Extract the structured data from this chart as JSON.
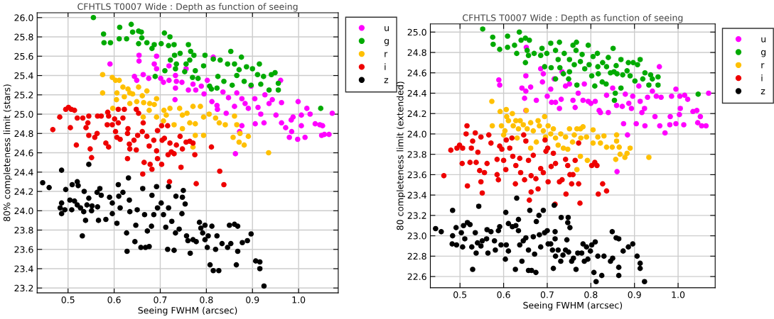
{
  "chart_data": [
    {
      "type": "scatter",
      "title": "CFHTLS T0007 Wide : Depth as function of seeing",
      "xlabel": "Seeing FWHM (arcsec)",
      "ylabel": "80% completeness limit (stars)",
      "xlim": [
        0.433,
        1.086
      ],
      "ylim": [
        23.15,
        26.05
      ],
      "xticks": [
        0.5,
        0.6,
        0.7,
        0.8,
        0.9,
        {
          "value": 1,
          "label": "1.0"
        }
      ],
      "yticks": [
        23.2,
        23.4,
        23.6,
        23.8,
        {
          "value": 24,
          "label": "24.0"
        },
        24.2,
        24.4,
        24.6,
        24.8,
        {
          "value": 25,
          "label": "25.0"
        },
        25.2,
        25.4,
        25.6,
        25.8,
        {
          "value": 26,
          "label": "26.0"
        }
      ],
      "grid": true,
      "legend": "top right",
      "marker": "circle",
      "series": [
        {
          "name": "u",
          "color": "#ff00ff",
          "x": [
            0.591,
            0.654,
            0.654,
            0.644,
            0.663,
            0.649,
            0.675,
            0.692,
            0.687,
            0.692,
            0.701,
            0.707,
            0.719,
            0.719,
            0.733,
            0.735,
            0.733,
            0.747,
            0.756,
            0.761,
            0.771,
            0.777,
            0.732,
            0.789,
            0.795,
            0.802,
            0.815,
            0.812,
            0.823,
            0.824,
            0.843,
            0.836,
            0.848,
            0.861,
            0.866,
            0.877,
            0.877,
            0.872,
            0.863,
            0.884,
            0.891,
            0.897,
            0.905,
            0.906,
            0.912,
            0.918,
            0.925,
            0.927,
            0.936,
            0.943,
            0.951,
            0.961,
            0.963,
            0.963,
            0.972,
            0.98,
            0.984,
            0.988,
            0.985,
            0.999,
            0.998,
            1.006,
            1.006,
            1.014,
            1.018,
            1.025,
            1.036,
            1.046,
            1.052,
            1.05,
            1.056,
            1.066,
            1.073
          ],
          "values": [
            25.52,
            25.61,
            25.55,
            25.39,
            25.41,
            25.35,
            25.37,
            25.6,
            25.52,
            25.47,
            25.37,
            25.33,
            25.35,
            25.5,
            25.4,
            25.34,
            25.27,
            25.33,
            25.47,
            25.25,
            25.31,
            25.25,
            25.15,
            25.29,
            25.21,
            25.35,
            25.59,
            25.13,
            25.09,
            25.05,
            25.01,
            25.23,
            25.17,
            25.08,
            25.22,
            25.16,
            24.88,
            24.82,
            24.59,
            25.11,
            25.06,
            25.29,
            25.16,
            24.9,
            25.07,
            25.0,
            24.91,
            25.2,
            25.11,
            25.15,
            24.99,
            25.35,
            24.91,
            25.12,
            24.86,
            24.76,
            24.94,
            24.97,
            24.82,
            25.13,
            24.74,
            24.99,
            24.88,
            24.76,
            25.06,
            25.0,
            24.9,
            24.89,
            24.88,
            24.78,
            24.79,
            24.79,
            25.01
          ]
        },
        {
          "name": "g",
          "color": "#00aa00",
          "x": [
            0.555,
            0.577,
            0.578,
            0.592,
            0.612,
            0.611,
            0.637,
            0.64,
            0.627,
            0.653,
            0.659,
            0.66,
            0.653,
            0.671,
            0.687,
            0.682,
            0.702,
            0.709,
            0.721,
            0.718,
            0.73,
            0.731,
            0.743,
            0.761,
            0.766,
            0.773,
            0.764,
            0.756,
            0.735,
            0.722,
            0.71,
            0.689,
            0.733,
            0.753,
            0.77,
            0.782,
            0.776,
            0.794,
            0.797,
            0.815,
            0.83,
            0.846,
            0.853,
            0.861,
            0.876,
            0.871,
            0.887,
            0.9,
            0.915,
            0.911,
            0.924,
            0.941,
            0.949,
            0.956,
            0.956,
            0.936,
            0.918,
            0.897,
            0.882,
            0.856,
            0.838,
            0.825,
            0.811,
            0.807,
            0.823,
            0.866,
            1.048
          ],
          "values": [
            26.0,
            25.83,
            25.74,
            25.74,
            25.9,
            25.78,
            25.93,
            25.85,
            25.78,
            25.86,
            25.85,
            25.79,
            25.73,
            25.74,
            25.72,
            25.68,
            25.73,
            25.84,
            25.8,
            25.71,
            25.72,
            25.61,
            25.63,
            25.72,
            25.65,
            25.61,
            25.56,
            25.52,
            25.52,
            25.56,
            25.45,
            25.39,
            25.47,
            25.44,
            25.38,
            25.37,
            25.45,
            25.5,
            25.61,
            25.57,
            25.56,
            25.52,
            25.65,
            25.52,
            25.59,
            25.46,
            25.49,
            25.47,
            25.52,
            25.41,
            25.39,
            25.41,
            25.43,
            25.32,
            25.25,
            25.25,
            25.31,
            25.3,
            25.34,
            25.3,
            25.34,
            25.39,
            25.26,
            25.29,
            25.27,
            25.4,
            25.06
          ]
        },
        {
          "name": "r",
          "color": "#ffc000",
          "x": [
            0.575,
            0.575,
            0.596,
            0.603,
            0.611,
            0.619,
            0.606,
            0.605,
            0.63,
            0.622,
            0.634,
            0.64,
            0.653,
            0.671,
            0.661,
            0.649,
            0.664,
            0.677,
            0.692,
            0.687,
            0.663,
            0.676,
            0.692,
            0.708,
            0.721,
            0.713,
            0.707,
            0.73,
            0.742,
            0.748,
            0.748,
            0.758,
            0.764,
            0.771,
            0.776,
            0.787,
            0.794,
            0.806,
            0.82,
            0.828,
            0.841,
            0.861,
            0.866,
            0.858,
            0.873,
            0.871,
            0.882,
            0.891,
            0.935,
            0.776,
            0.794,
            0.771,
            0.597,
            0.634
          ],
          "values": [
            25.41,
            25.22,
            25.38,
            25.35,
            25.35,
            25.28,
            25.22,
            25.15,
            25.26,
            25.18,
            25.11,
            25.21,
            25.28,
            25.24,
            25.19,
            25.13,
            25.12,
            25.11,
            25.16,
            25.1,
            24.97,
            25.04,
            24.97,
            25.04,
            25.06,
            24.99,
            24.93,
            24.89,
            25.06,
            24.85,
            24.99,
            25.01,
            24.91,
            25.08,
            24.9,
            25.08,
            24.97,
            25.0,
            24.96,
            24.91,
            24.89,
            24.98,
            24.89,
            24.76,
            24.8,
            24.71,
            24.68,
            24.77,
            24.6,
            24.78,
            24.78,
            24.66,
            25.06,
            25.22
          ]
        },
        {
          "name": "i",
          "color": "#ee0000",
          "x": [
            0.467,
            0.482,
            0.495,
            0.501,
            0.507,
            0.514,
            0.505,
            0.518,
            0.52,
            0.532,
            0.539,
            0.545,
            0.543,
            0.545,
            0.548,
            0.551,
            0.558,
            0.563,
            0.564,
            0.572,
            0.586,
            0.588,
            0.582,
            0.588,
            0.585,
            0.596,
            0.601,
            0.603,
            0.609,
            0.606,
            0.613,
            0.619,
            0.622,
            0.629,
            0.629,
            0.633,
            0.634,
            0.643,
            0.648,
            0.648,
            0.653,
            0.651,
            0.661,
            0.663,
            0.662,
            0.665,
            0.671,
            0.676,
            0.678,
            0.682,
            0.686,
            0.692,
            0.694,
            0.694,
            0.703,
            0.704,
            0.703,
            0.709,
            0.716,
            0.717,
            0.721,
            0.73,
            0.735,
            0.743,
            0.745,
            0.72,
            0.748,
            0.756,
            0.764,
            0.771,
            0.775,
            0.778,
            0.811,
            0.829,
            0.838,
            0.609,
            0.724,
            0.63
          ],
          "values": [
            24.84,
            24.97,
            25.05,
            25.07,
            25.05,
            25.04,
            24.86,
            24.68,
            24.96,
            24.96,
            24.86,
            24.98,
            24.91,
            24.78,
            24.64,
            24.55,
            24.76,
            24.8,
            24.98,
            24.98,
            25.02,
            24.98,
            24.7,
            24.66,
            24.89,
            24.89,
            24.95,
            24.82,
            25.05,
            24.76,
            24.74,
            24.96,
            25.05,
            24.8,
            24.54,
            24.69,
            24.64,
            24.73,
            24.63,
            25.05,
            25.01,
            24.78,
            24.82,
            24.91,
            24.38,
            24.5,
            24.77,
            24.67,
            24.48,
            24.43,
            24.73,
            24.62,
            24.83,
            24.54,
            24.88,
            24.73,
            24.48,
            24.75,
            24.88,
            24.58,
            24.7,
            24.59,
            24.68,
            24.77,
            24.45,
            24.3,
            24.64,
            24.71,
            24.72,
            24.7,
            24.58,
            24.28,
            24.66,
            24.41,
            24.27,
            24.91,
            24.61,
            24.85
          ]
        },
        {
          "name": "z",
          "color": "#000000",
          "x": [
            0.445,
            0.459,
            0.486,
            0.483,
            0.486,
            0.486,
            0.493,
            0.495,
            0.504,
            0.508,
            0.509,
            0.514,
            0.52,
            0.522,
            0.52,
            0.527,
            0.531,
            0.534,
            0.535,
            0.538,
            0.541,
            0.545,
            0.545,
            0.552,
            0.551,
            0.564,
            0.563,
            0.569,
            0.566,
            0.572,
            0.582,
            0.59,
            0.596,
            0.596,
            0.606,
            0.609,
            0.61,
            0.613,
            0.619,
            0.627,
            0.628,
            0.631,
            0.633,
            0.634,
            0.645,
            0.647,
            0.65,
            0.658,
            0.662,
            0.666,
            0.668,
            0.672,
            0.676,
            0.682,
            0.681,
            0.686,
            0.692,
            0.694,
            0.702,
            0.707,
            0.712,
            0.716,
            0.718,
            0.718,
            0.725,
            0.73,
            0.733,
            0.734,
            0.741,
            0.747,
            0.748,
            0.75,
            0.754,
            0.757,
            0.76,
            0.765,
            0.771,
            0.778,
            0.785,
            0.788,
            0.792,
            0.797,
            0.797,
            0.804,
            0.802,
            0.808,
            0.812,
            0.815,
            0.82,
            0.823,
            0.827,
            0.834,
            0.846,
            0.85,
            0.853,
            0.861,
            0.865,
            0.868,
            0.868,
            0.878,
            0.889,
            0.897,
            0.907,
            0.916,
            0.916,
            0.925
          ],
          "values": [
            24.29,
            24.24,
            24.42,
            24.03,
            24.08,
            23.97,
            24.01,
            24.22,
            24.11,
            24.01,
            24.27,
            24.1,
            24.3,
            24.26,
            24.06,
            24.03,
            23.74,
            23.99,
            24.2,
            23.9,
            24.06,
            24.48,
            24.13,
            24.05,
            24.0,
            24.04,
            24.19,
            24.23,
            23.9,
            24.16,
            23.91,
            24.14,
            24.08,
            23.97,
            23.87,
            24.27,
            24.15,
            24.03,
            24.19,
            23.77,
            23.58,
            24.34,
            24.11,
            23.99,
            23.68,
            23.85,
            24.01,
            23.62,
            24.23,
            23.96,
            23.62,
            23.79,
            23.63,
            24.16,
            23.84,
            23.96,
            24.25,
            24.03,
            24.08,
            23.96,
            23.83,
            23.6,
            24.03,
            24.25,
            23.89,
            23.59,
            23.77,
            24.15,
            23.81,
            23.97,
            24.14,
            24.21,
            24.07,
            23.74,
            23.69,
            23.56,
            23.7,
            23.68,
            23.88,
            23.82,
            23.77,
            23.85,
            23.7,
            23.74,
            23.62,
            23.44,
            23.84,
            23.38,
            23.6,
            23.74,
            23.38,
            23.66,
            23.62,
            23.85,
            23.66,
            23.86,
            23.44,
            23.84,
            23.58,
            23.67,
            23.69,
            23.76,
            23.48,
            23.47,
            23.4,
            23.22
          ]
        }
      ]
    },
    {
      "type": "scatter",
      "title": "CFHTLS T0007 Wide : Depth as function of seeing",
      "xlabel": "Seeing FWHM (arcsec)",
      "ylabel": "80 completeness limit (extended)",
      "xlim": [
        0.432,
        1.085
      ],
      "ylim": [
        22.49,
        25.08
      ],
      "xticks": [
        0.5,
        0.6,
        0.7,
        0.8,
        0.9,
        {
          "value": 1,
          "label": "1.0"
        }
      ],
      "yticks": [
        22.6,
        22.8,
        {
          "value": 23,
          "label": "23.0"
        },
        23.2,
        23.4,
        23.6,
        23.8,
        {
          "value": 24,
          "label": "24.0"
        },
        24.2,
        24.4,
        24.6,
        24.8,
        {
          "value": 25,
          "label": "25.0"
        }
      ],
      "grid": true,
      "legend": "top right",
      "marker": "circle",
      "series": [
        {
          "name": "u",
          "color": "#ff00ff",
          "x": [
            0.652,
            0.651,
            0.589,
            0.591,
            0.642,
            0.648,
            0.651,
            0.662,
            0.651,
            0.675,
            0.685,
            0.691,
            0.689,
            0.7,
            0.708,
            0.71,
            0.719,
            0.716,
            0.728,
            0.732,
            0.734,
            0.742,
            0.751,
            0.759,
            0.764,
            0.771,
            0.782,
            0.785,
            0.794,
            0.8,
            0.81,
            0.819,
            0.822,
            0.836,
            0.84,
            0.85,
            0.859,
            0.86,
            0.875,
            0.872,
            0.879,
            0.884,
            0.887,
            0.893,
            0.896,
            0.904,
            0.91,
            0.913,
            0.917,
            0.924,
            0.923,
            0.93,
            0.941,
            0.947,
            0.95,
            0.958,
            0.961,
            0.957,
            0.97,
            0.981,
            0.982,
            0.985,
            0.995,
            0.995,
            1.004,
            1.003,
            1.005,
            1.013,
            1.015,
            1.022,
            1.034,
            1.043,
            1.051,
            1.045,
            1.054,
            1.064,
            1.07
          ],
          "values": [
            24.85,
            24.57,
            24.53,
            24.48,
            24.45,
            24.35,
            24.42,
            24.46,
            24.23,
            24.33,
            24.64,
            24.59,
            24.51,
            24.37,
            24.44,
            24.31,
            24.31,
            24.54,
            24.25,
            24.34,
            24.61,
            24.47,
            24.49,
            24.33,
            24.26,
            24.4,
            24.33,
            24.49,
            24.32,
            24.3,
            24.32,
            24.23,
            24.21,
            24.38,
            24.21,
            24.45,
            24.28,
            23.63,
            24.1,
            24.27,
            24.39,
            23.99,
            24.3,
            24.25,
            24.37,
            24.1,
            24.47,
            24.32,
            24.21,
            24.08,
            24.25,
            24.36,
            24.42,
            24.17,
            24.37,
            24.08,
            24.36,
            24.66,
            24.01,
            24.09,
            24.17,
            24.37,
            24.1,
            24.44,
            24.37,
            24.19,
            24.25,
            24.09,
            24.38,
            24.34,
            24.22,
            24.23,
            24.17,
            24.11,
            24.08,
            24.08,
            24.4
          ]
        },
        {
          "name": "g",
          "color": "#00aa00",
          "x": [
            0.552,
            0.575,
            0.576,
            0.591,
            0.609,
            0.609,
            0.63,
            0.625,
            0.636,
            0.64,
            0.65,
            0.659,
            0.654,
            0.65,
            0.657,
            0.67,
            0.688,
            0.685,
            0.699,
            0.694,
            0.708,
            0.719,
            0.728,
            0.725,
            0.709,
            0.719,
            0.729,
            0.739,
            0.751,
            0.759,
            0.767,
            0.766,
            0.762,
            0.751,
            0.737,
            0.749,
            0.768,
            0.776,
            0.78,
            0.786,
            0.794,
            0.796,
            0.805,
            0.802,
            0.809,
            0.815,
            0.816,
            0.817,
            0.827,
            0.826,
            0.835,
            0.836,
            0.84,
            0.845,
            0.851,
            0.853,
            0.858,
            0.86,
            0.856,
            0.854,
            0.869,
            0.873,
            0.869,
            0.883,
            0.886,
            0.89,
            0.897,
            0.901,
            0.907,
            0.913,
            0.919,
            0.924,
            0.933,
            0.937,
            0.941,
            0.954,
            0.954,
            1.046
          ],
          "values": [
            25.03,
            24.95,
            24.88,
            24.83,
            24.96,
            24.85,
            24.79,
            24.87,
            25.0,
            24.92,
            24.94,
            24.92,
            24.82,
            24.7,
            24.77,
            24.79,
            24.84,
            24.77,
            24.79,
            24.66,
            24.89,
            24.82,
            24.9,
            24.73,
            24.65,
            24.54,
            24.65,
            24.79,
            24.73,
            24.87,
            24.9,
            24.82,
            24.68,
            24.61,
            24.59,
            24.54,
            24.48,
            24.71,
            24.78,
            24.64,
            24.87,
            24.68,
            24.76,
            24.57,
            24.47,
            24.79,
            24.66,
            24.59,
            24.7,
            24.51,
            24.49,
            24.66,
            24.75,
            24.6,
            24.84,
            24.61,
            24.67,
            24.59,
            24.4,
            24.33,
            24.73,
            24.58,
            24.45,
            24.62,
            24.7,
            24.57,
            24.7,
            24.52,
            24.68,
            24.73,
            24.54,
            24.6,
            24.48,
            24.58,
            24.54,
            24.56,
            24.48,
            24.39
          ]
        },
        {
          "name": "r",
          "color": "#ffc000",
          "x": [
            0.573,
            0.574,
            0.592,
            0.606,
            0.595,
            0.603,
            0.6,
            0.607,
            0.611,
            0.62,
            0.622,
            0.628,
            0.634,
            0.631,
            0.638,
            0.645,
            0.652,
            0.654,
            0.662,
            0.662,
            0.668,
            0.675,
            0.679,
            0.682,
            0.694,
            0.691,
            0.696,
            0.702,
            0.708,
            0.714,
            0.719,
            0.725,
            0.731,
            0.737,
            0.742,
            0.747,
            0.751,
            0.758,
            0.762,
            0.768,
            0.776,
            0.782,
            0.777,
            0.79,
            0.805,
            0.805,
            0.816,
            0.822,
            0.83,
            0.836,
            0.849,
            0.859,
            0.859,
            0.865,
            0.867,
            0.878,
            0.883,
            0.89,
            0.857,
            0.776,
            0.792,
            0.768,
            0.933
          ],
          "values": [
            24.32,
            24.08,
            24.22,
            24.24,
            24.08,
            24.03,
            23.99,
            24.17,
            24.13,
            24.2,
            24.08,
            24.13,
            24.05,
            23.96,
            24.13,
            24.09,
            24.23,
            24.05,
            24.11,
            23.86,
            24.03,
            23.92,
            24.13,
            24.08,
            24.17,
            24.03,
            23.97,
            24.08,
            24.0,
            24.05,
            23.96,
            23.89,
            24.0,
            23.86,
            23.97,
            23.85,
            24.05,
            23.92,
            23.99,
            24.05,
            24.05,
            24.07,
            23.96,
            23.97,
            24.04,
            23.91,
            23.97,
            23.91,
            23.98,
            23.87,
            23.87,
            23.99,
            23.93,
            23.87,
            23.8,
            23.77,
            23.81,
            23.86,
            23.75,
            23.78,
            23.74,
            23.65,
            23.77
          ]
        },
        {
          "name": "i",
          "color": "#ee0000",
          "x": [
            0.463,
            0.479,
            0.493,
            0.499,
            0.506,
            0.505,
            0.516,
            0.514,
            0.517,
            0.523,
            0.526,
            0.529,
            0.535,
            0.537,
            0.541,
            0.545,
            0.548,
            0.548,
            0.551,
            0.556,
            0.562,
            0.566,
            0.571,
            0.585,
            0.588,
            0.585,
            0.591,
            0.596,
            0.6,
            0.606,
            0.605,
            0.614,
            0.619,
            0.621,
            0.627,
            0.628,
            0.637,
            0.639,
            0.646,
            0.648,
            0.651,
            0.657,
            0.659,
            0.663,
            0.663,
            0.668,
            0.674,
            0.679,
            0.685,
            0.691,
            0.695,
            0.697,
            0.701,
            0.702,
            0.709,
            0.714,
            0.718,
            0.719,
            0.728,
            0.734,
            0.742,
            0.743,
            0.747,
            0.752,
            0.756,
            0.759,
            0.764,
            0.772,
            0.772,
            0.775,
            0.802,
            0.809,
            0.814,
            0.817,
            0.827,
            0.836
          ],
          "values": [
            23.59,
            23.84,
            23.86,
            23.89,
            23.86,
            23.71,
            24.08,
            24.0,
            23.49,
            23.72,
            23.86,
            23.93,
            24.01,
            23.72,
            23.82,
            23.64,
            23.97,
            23.53,
            23.42,
            23.62,
            23.71,
            23.99,
            23.91,
            23.6,
            23.55,
            23.75,
            23.88,
            23.85,
            23.74,
            23.94,
            23.65,
            23.86,
            23.96,
            23.78,
            23.51,
            23.69,
            23.76,
            23.62,
            23.99,
            23.55,
            23.93,
            23.74,
            23.35,
            23.43,
            23.59,
            23.79,
            23.56,
            23.46,
            23.66,
            23.62,
            23.94,
            23.83,
            23.86,
            23.53,
            23.68,
            23.81,
            23.31,
            23.71,
            23.53,
            23.55,
            23.75,
            23.41,
            23.69,
            23.6,
            23.51,
            23.6,
            23.74,
            23.91,
            23.51,
            23.32,
            23.69,
            23.72,
            23.69,
            23.41,
            23.51,
            23.44
          ]
        },
        {
          "name": "z",
          "color": "#000000",
          "x": [
            0.444,
            0.457,
            0.483,
            0.483,
            0.482,
            0.491,
            0.492,
            0.503,
            0.506,
            0.508,
            0.517,
            0.523,
            0.511,
            0.527,
            0.529,
            0.535,
            0.537,
            0.54,
            0.543,
            0.548,
            0.551,
            0.561,
            0.562,
            0.564,
            0.571,
            0.579,
            0.581,
            0.588,
            0.591,
            0.594,
            0.604,
            0.605,
            0.606,
            0.611,
            0.611,
            0.62,
            0.627,
            0.628,
            0.634,
            0.637,
            0.63,
            0.634,
            0.642,
            0.645,
            0.651,
            0.657,
            0.657,
            0.66,
            0.664,
            0.668,
            0.671,
            0.674,
            0.675,
            0.681,
            0.682,
            0.685,
            0.691,
            0.694,
            0.7,
            0.702,
            0.708,
            0.712,
            0.714,
            0.716,
            0.718,
            0.718,
            0.719,
            0.725,
            0.731,
            0.732,
            0.736,
            0.742,
            0.745,
            0.747,
            0.748,
            0.749,
            0.752,
            0.756,
            0.76,
            0.766,
            0.77,
            0.779,
            0.782,
            0.785,
            0.79,
            0.793,
            0.799,
            0.802,
            0.807,
            0.81,
            0.812,
            0.816,
            0.825,
            0.83,
            0.845,
            0.849,
            0.85,
            0.858,
            0.864,
            0.864,
            0.864,
            0.874,
            0.886,
            0.896,
            0.906,
            0.913,
            0.913,
            0.923
          ],
          "values": [
            23.07,
            23.04,
            23.25,
            23.0,
            22.92,
            23.08,
            22.91,
            23.03,
            22.89,
            23.1,
            23.13,
            23.11,
            22.97,
            22.89,
            22.67,
            23.03,
            22.83,
            22.93,
            23.29,
            22.9,
            22.95,
            22.97,
            23.06,
            22.83,
            23.04,
            22.95,
            22.86,
            23.05,
            23.09,
            22.91,
            22.77,
            23.23,
            22.91,
            23.12,
            22.85,
            23.09,
            22.67,
            23.1,
            23.05,
            22.91,
            23.37,
            23.16,
            22.75,
            22.95,
            22.98,
            22.86,
            22.66,
            23.25,
            22.66,
            22.99,
            22.82,
            22.64,
            23.14,
            23.2,
            23.01,
            22.89,
            23.25,
            23.03,
            23.05,
            22.92,
            22.92,
            22.86,
            22.68,
            23.3,
            23.04,
            22.97,
            22.8,
            22.86,
            22.75,
            23.18,
            22.81,
            22.86,
            22.96,
            23.13,
            23.18,
            22.84,
            23.08,
            22.75,
            22.78,
            22.67,
            22.83,
            22.83,
            22.92,
            22.75,
            22.89,
            22.77,
            22.85,
            22.91,
            22.64,
            22.94,
            22.55,
            22.8,
            22.61,
            22.8,
            22.75,
            23.04,
            22.78,
            22.98,
            22.97,
            22.69,
            22.61,
            22.85,
            22.89,
            22.92,
            22.8,
            22.73,
            22.68,
            22.55
          ]
        }
      ]
    }
  ]
}
